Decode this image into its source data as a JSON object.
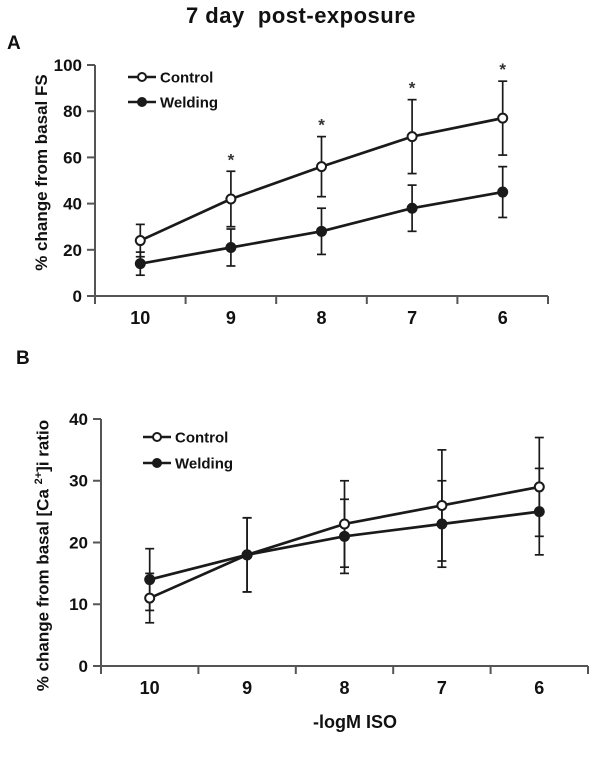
{
  "title": "7 day  post-exposure",
  "xlabel": "-logM ISO",
  "sig_symbol": "*",
  "colors": {
    "background": "#ffffff",
    "axis": "#555555",
    "data": "#1a1a1a",
    "text": "#111111",
    "open_marker_fill": "#ffffff"
  },
  "panels": [
    {
      "label": "A",
      "ylabel": "% change from basal FS"
    },
    {
      "label": "B",
      "ylabel_prefix": "% change from basal [Ca ",
      "ylabel_sup": "2+",
      "ylabel_suffix": "]i ratio"
    }
  ],
  "chart_data": [
    {
      "type": "line",
      "panel": "A",
      "ylabel": "% change from basal FS",
      "xlabel": "-logM ISO",
      "categories": [
        "10",
        "9",
        "8",
        "7",
        "6"
      ],
      "ylim": [
        0,
        100
      ],
      "yticks": [
        0,
        20,
        40,
        60,
        80,
        100
      ],
      "grid": false,
      "legend_position": "top-left-inside",
      "series": [
        {
          "name": "Control",
          "marker": "open-circle",
          "values": [
            24,
            42,
            56,
            69,
            77
          ],
          "errors": [
            7,
            12,
            13,
            16,
            16
          ],
          "significant": [
            false,
            true,
            true,
            true,
            true
          ]
        },
        {
          "name": "Welding",
          "marker": "filled-circle",
          "values": [
            14,
            21,
            28,
            38,
            45
          ],
          "errors": [
            5,
            8,
            10,
            10,
            11
          ],
          "significant": [
            false,
            false,
            false,
            false,
            false
          ]
        }
      ]
    },
    {
      "type": "line",
      "panel": "B",
      "ylabel": "% change from basal [Ca2+]i ratio",
      "xlabel": "-logM ISO",
      "categories": [
        "10",
        "9",
        "8",
        "7",
        "6"
      ],
      "ylim": [
        0,
        40
      ],
      "yticks": [
        0,
        10,
        20,
        30,
        40
      ],
      "grid": false,
      "legend_position": "top-left-inside",
      "series": [
        {
          "name": "Control",
          "marker": "open-circle",
          "values": [
            11,
            18,
            23,
            26,
            29
          ],
          "errors": [
            4,
            6,
            7,
            9,
            8
          ],
          "significant": [
            false,
            false,
            false,
            false,
            false
          ]
        },
        {
          "name": "Welding",
          "marker": "filled-circle",
          "values": [
            14,
            18,
            21,
            23,
            25
          ],
          "errors": [
            5,
            6,
            6,
            7,
            7
          ],
          "significant": [
            false,
            false,
            false,
            false,
            false
          ]
        }
      ]
    }
  ]
}
